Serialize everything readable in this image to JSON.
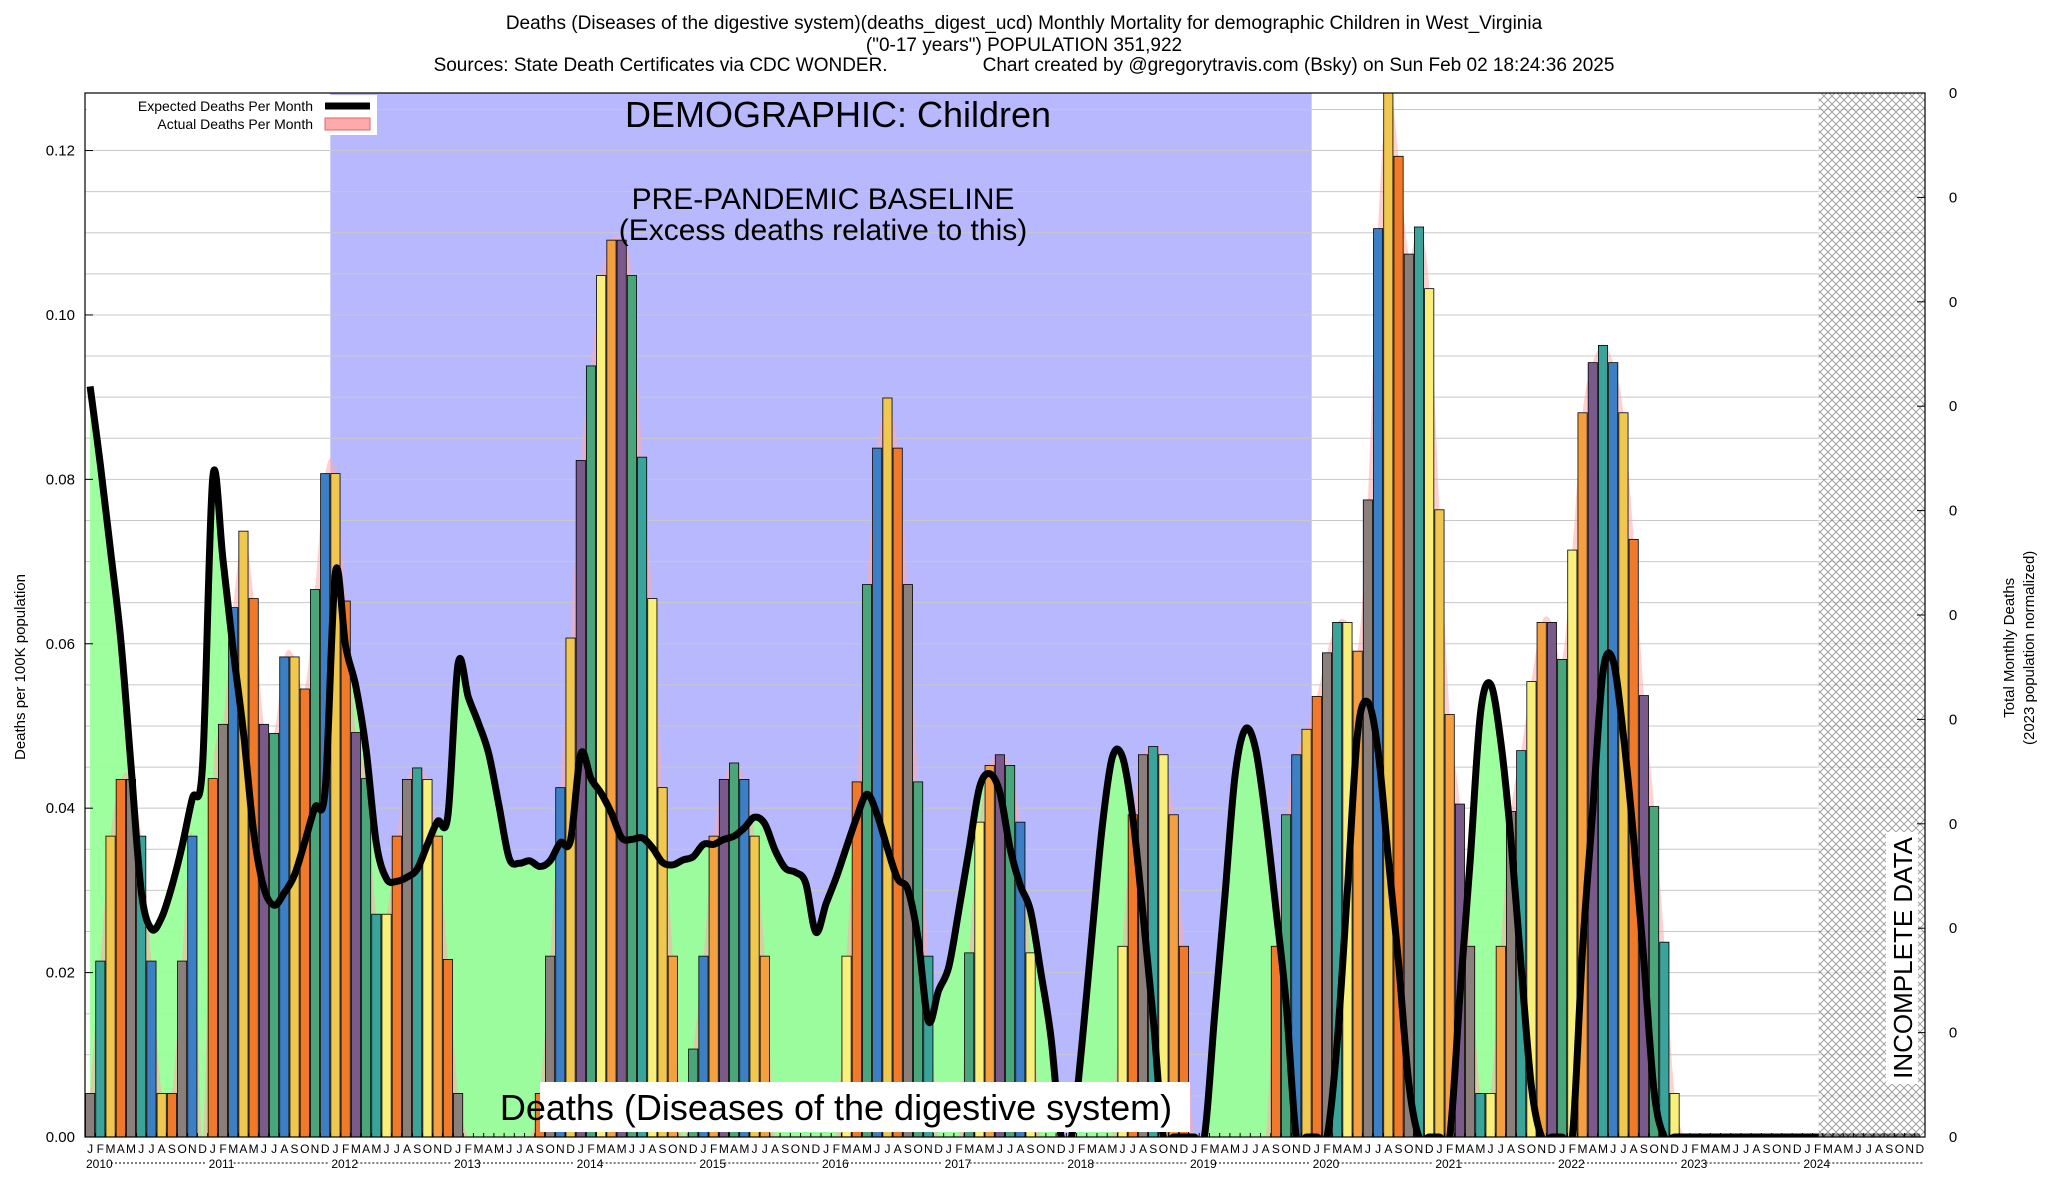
{
  "header": {
    "line1": "Deaths (Diseases of the digestive system)(deaths_digest_ucd) Monthly Mortality for demographic Children in West_Virginia",
    "line2": "(\"0-17 years\") POPULATION 351,922",
    "line3a": "Sources: State Death Certificates via CDC WONDER.",
    "line3b": "Chart created by @gregorytravis.com (Bsky) on Sun Feb 02 18:24:36 2025"
  },
  "chart_data": {
    "type": "bar",
    "ylabel": "Deaths per 100K population",
    "y2label_line1": "Total Monthly Deaths",
    "y2label_line2": "(2023 population normalized)",
    "ylim": [
      0,
      0.127
    ],
    "yticks": [
      "0.00",
      "0.02",
      "0.04",
      "0.06",
      "0.08",
      "0.10",
      "0.12"
    ],
    "y2ticks": [
      "0",
      "0",
      "0",
      "0",
      "0",
      "0",
      "0",
      "0",
      "0",
      "0",
      "0"
    ],
    "x_start": "2010-01",
    "x_end": "2024-12",
    "month_letters": [
      "J",
      "F",
      "M",
      "A",
      "M",
      "J",
      "J",
      "A",
      "S",
      "O",
      "N",
      "D"
    ],
    "years": [
      "2010",
      "2011",
      "2012",
      "2013",
      "2014",
      "2015",
      "2016",
      "2017",
      "2018",
      "2019",
      "2020",
      "2021",
      "2022",
      "2023",
      "2024"
    ],
    "legend": [
      "Expected Deaths Per Month",
      "Actual Deaths Per Month"
    ],
    "legend_position": "top-left",
    "annotations": {
      "demographic": "DEMOGRAPHIC: Children",
      "baseline_line1": "PRE-PANDEMIC BASELINE",
      "baseline_line2": "(Excess deaths relative to this)",
      "bottom_label": "Deaths (Diseases of the digestive system)",
      "incomplete": "INCOMPLETE DATA"
    },
    "baseline_period": [
      "2012-01",
      "2019-12"
    ],
    "incomplete_period": [
      "2024-03",
      "2024-12"
    ],
    "actual_per_month": [
      0.0053,
      0.0214,
      0.0366,
      0.0435,
      0.0435,
      0.0366,
      0.0214,
      0.0053,
      0.0053,
      0.0214,
      0.0366,
      0.0,
      0.0436,
      0.0502,
      0.0644,
      0.0737,
      0.0655,
      0.0502,
      0.0491,
      0.0584,
      0.0584,
      0.0545,
      0.0666,
      0.0807,
      0.0807,
      0.0652,
      0.0492,
      0.0436,
      0.0271,
      0.0271,
      0.0366,
      0.0435,
      0.0449,
      0.0435,
      0.0366,
      0.0216,
      0.0053,
      0.0,
      0.0,
      0.0,
      0.0,
      0.0,
      0.0,
      0.0,
      0.0053,
      0.022,
      0.0425,
      0.0607,
      0.0823,
      0.0938,
      0.1048,
      0.1091,
      0.1091,
      0.1048,
      0.0827,
      0.0655,
      0.0425,
      0.022,
      0.0,
      0.0107,
      0.022,
      0.0366,
      0.0435,
      0.0455,
      0.0435,
      0.0366,
      0.022,
      0.0,
      0.0,
      0.0,
      0.0,
      0.0,
      0.0,
      0.0,
      0.022,
      0.0432,
      0.0672,
      0.0838,
      0.0899,
      0.0838,
      0.0672,
      0.0432,
      0.022,
      0.0,
      0.0,
      0.0,
      0.0224,
      0.0383,
      0.0452,
      0.0465,
      0.0452,
      0.0383,
      0.0224,
      0.0,
      0.0,
      0.0,
      0.0,
      0.0,
      0.0,
      0.0,
      0.0,
      0.0232,
      0.0392,
      0.0465,
      0.0475,
      0.0465,
      0.0392,
      0.0232,
      0.0,
      0.0,
      0.0,
      0.0,
      0.0,
      0.0,
      0.0,
      0.0,
      0.0232,
      0.0392,
      0.0465,
      0.0496,
      0.0536,
      0.0589,
      0.0626,
      0.0626,
      0.0591,
      0.0775,
      0.1105,
      0.1281,
      0.1193,
      0.1074,
      0.1107,
      0.1032,
      0.0763,
      0.0514,
      0.0405,
      0.0232,
      0.0053,
      0.0053,
      0.0232,
      0.0396,
      0.047,
      0.0554,
      0.0626,
      0.0626,
      0.0581,
      0.0714,
      0.0881,
      0.0942,
      0.0963,
      0.0942,
      0.0881,
      0.0727,
      0.0537,
      0.0402,
      0.0237,
      0.0053,
      0.0,
      0.0,
      0.0,
      0.0,
      0.0,
      0.0,
      0.0,
      0.0,
      0.0,
      0.0,
      0.0,
      0.0,
      0.0,
      0.0,
      0.0,
      0.0,
      0.0,
      0.0,
      0.0,
      0.0,
      0.0,
      0.0,
      0.0,
      0.0
    ],
    "expected_per_month": [
      0.0913,
      0.0818,
      0.0713,
      0.0605,
      0.0452,
      0.0299,
      0.0253,
      0.0267,
      0.0305,
      0.0354,
      0.0412,
      0.0452,
      0.0802,
      0.0702,
      0.0592,
      0.0492,
      0.0371,
      0.0303,
      0.0282,
      0.0297,
      0.0319,
      0.0359,
      0.0401,
      0.0423,
      0.0687,
      0.0597,
      0.0548,
      0.0471,
      0.0357,
      0.0314,
      0.0311,
      0.0316,
      0.0326,
      0.0356,
      0.0384,
      0.0391,
      0.0576,
      0.0535,
      0.0503,
      0.0466,
      0.0403,
      0.0339,
      0.0333,
      0.0336,
      0.0329,
      0.0336,
      0.0358,
      0.0361,
      0.0466,
      0.0436,
      0.0418,
      0.0394,
      0.0364,
      0.0362,
      0.0364,
      0.0352,
      0.0334,
      0.0331,
      0.0337,
      0.0341,
      0.0356,
      0.0356,
      0.0362,
      0.0366,
      0.0376,
      0.0389,
      0.0381,
      0.0349,
      0.0327,
      0.0322,
      0.0309,
      0.0249,
      0.0284,
      0.0316,
      0.0353,
      0.0389,
      0.0417,
      0.0392,
      0.0351,
      0.0314,
      0.0301,
      0.0241,
      0.0141,
      0.0178,
      0.0207,
      0.0277,
      0.0351,
      0.0425,
      0.0442,
      0.0419,
      0.0351,
      0.0306,
      0.0275,
      0.0201,
      0.0121,
      0.0,
      0.0,
      0.0109,
      0.0244,
      0.0376,
      0.0462,
      0.0462,
      0.0389,
      0.0271,
      0.0144,
      0.0,
      0.0,
      0.0,
      0.0,
      0.0,
      0.0147,
      0.0291,
      0.0439,
      0.0496,
      0.0473,
      0.0388,
      0.0278,
      0.0163,
      0.0,
      0.0,
      0.0,
      0.0,
      0.0116,
      0.0301,
      0.0492,
      0.0529,
      0.0469,
      0.0339,
      0.0212,
      0.0066,
      0.0,
      0.0,
      0.0,
      0.0,
      0.0172,
      0.0335,
      0.0514,
      0.0551,
      0.0481,
      0.0361,
      0.0206,
      0.0061,
      0.0,
      0.0,
      0.0,
      0.0,
      0.0228,
      0.0398,
      0.0566,
      0.0579,
      0.0488,
      0.0363,
      0.0214,
      0.0055,
      0.0,
      0.0,
      0.0,
      0.0,
      0.0,
      0.0,
      0.0,
      0.0,
      0.0,
      0.0,
      0.0,
      0.0,
      0.0,
      0.0,
      0.0,
      0.0,
      0.0,
      0.0,
      0.0,
      0.0,
      0.0,
      0.0,
      0.0,
      0.0,
      0.0,
      0.0
    ],
    "colors": {
      "baseline_fill": "#b8b8ff",
      "expected_line": "#000000",
      "expected_fill": "#99ff99",
      "actual_area": "#ffaaaa",
      "bar_spectrum": [
        "#3c7fc4",
        "#3aa39a",
        "#4ba57a",
        "#8a7f7a",
        "#7a5a8a",
        "#f07a2a",
        "#f5a040",
        "#f0c850",
        "#f8f07a"
      ]
    }
  }
}
